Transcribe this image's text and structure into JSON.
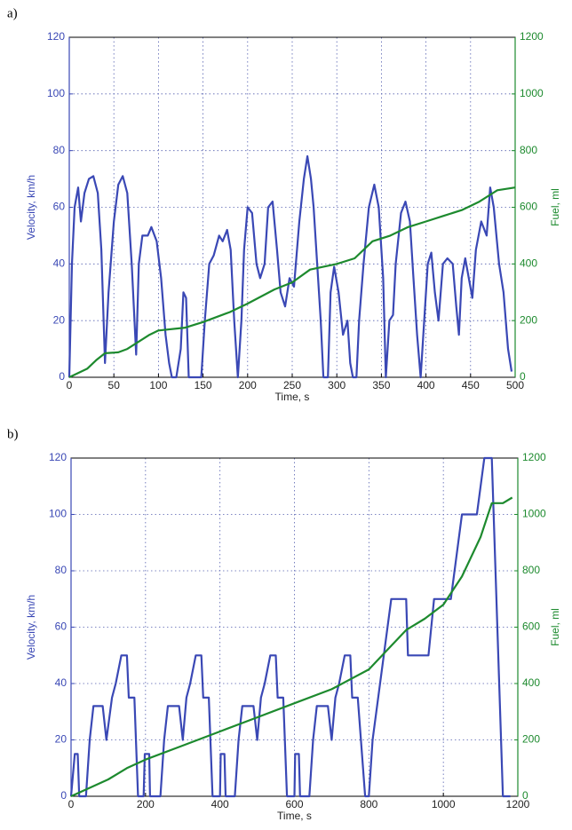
{
  "chart_data": [
    {
      "type": "line",
      "panel_label": "a)",
      "xlabel": "Time, s",
      "ylabel": "Velocity, km/h",
      "y2label": "Fuel, ml",
      "xlim": [
        0,
        500
      ],
      "xticks": [
        0,
        50,
        100,
        150,
        200,
        250,
        300,
        350,
        400,
        450,
        500
      ],
      "ylim": [
        0,
        120
      ],
      "yticks": [
        0,
        20,
        40,
        60,
        80,
        100,
        120
      ],
      "y2lim": [
        0,
        1200
      ],
      "y2ticks": [
        0,
        200,
        400,
        600,
        800,
        1000,
        1200
      ],
      "grid": true,
      "series": [
        {
          "color": "#3a48b5",
          "x": [
            0,
            3,
            6,
            10,
            13,
            17,
            22,
            27,
            32,
            36,
            40,
            44,
            50,
            55,
            60,
            65,
            70,
            75,
            78,
            82,
            88,
            92,
            98,
            103,
            108,
            112,
            115,
            120,
            125,
            128,
            131,
            134,
            148,
            152,
            157,
            162,
            168,
            172,
            177,
            181,
            185,
            189,
            193,
            196,
            200,
            205,
            210,
            214,
            219,
            223,
            228,
            233,
            237,
            242,
            247,
            252,
            258,
            263,
            267,
            271,
            274,
            278,
            282,
            285,
            290,
            293,
            297,
            302,
            307,
            312,
            315,
            318,
            322,
            325,
            330,
            336,
            342,
            347,
            352,
            355,
            359,
            363,
            366,
            372,
            377,
            382,
            386,
            390,
            394,
            398,
            402,
            406,
            410,
            414,
            419,
            424,
            430,
            434,
            437,
            440,
            444,
            448,
            452,
            456,
            462,
            468,
            472,
            476,
            482,
            487,
            492,
            496
          ],
          "values": [
            0,
            40,
            60,
            67,
            55,
            65,
            70,
            71,
            65,
            45,
            5,
            30,
            55,
            68,
            71,
            65,
            40,
            8,
            40,
            50,
            50,
            53,
            48,
            35,
            15,
            5,
            0,
            0,
            10,
            30,
            28,
            0,
            0,
            20,
            40,
            43,
            50,
            48,
            52,
            45,
            20,
            0,
            20,
            45,
            60,
            58,
            40,
            35,
            40,
            60,
            62,
            45,
            30,
            25,
            35,
            32,
            55,
            70,
            78,
            70,
            60,
            40,
            20,
            0,
            0,
            30,
            39,
            30,
            15,
            20,
            5,
            0,
            0,
            20,
            40,
            60,
            68,
            60,
            35,
            0,
            20,
            22,
            40,
            58,
            62,
            55,
            35,
            15,
            0,
            20,
            40,
            44,
            30,
            20,
            40,
            42,
            40,
            25,
            15,
            35,
            42,
            35,
            28,
            45,
            55,
            50,
            67,
            60,
            40,
            30,
            10,
            2
          ]
        },
        {
          "color": "#1d8a2e",
          "axis": "y2",
          "x": [
            0,
            20,
            30,
            40,
            55,
            65,
            75,
            90,
            100,
            130,
            150,
            180,
            200,
            230,
            250,
            270,
            300,
            320,
            340,
            360,
            380,
            400,
            420,
            440,
            460,
            475,
            480,
            500
          ],
          "values": [
            0,
            30,
            60,
            85,
            88,
            100,
            120,
            150,
            165,
            175,
            195,
            230,
            260,
            310,
            335,
            380,
            400,
            420,
            480,
            500,
            530,
            550,
            570,
            590,
            620,
            650,
            660,
            670
          ]
        }
      ]
    },
    {
      "type": "line",
      "panel_label": "b)",
      "xlabel": "Time, s",
      "ylabel": "Velocity, km/h",
      "y2label": "Fuel, ml",
      "xlim": [
        0,
        1200
      ],
      "xticks": [
        0,
        200,
        400,
        600,
        800,
        1000,
        1200
      ],
      "ylim": [
        0,
        120
      ],
      "yticks": [
        0,
        20,
        40,
        60,
        80,
        100,
        120
      ],
      "y2lim": [
        0,
        1200
      ],
      "y2ticks": [
        0,
        200,
        400,
        600,
        800,
        1000,
        1200
      ],
      "grid": true,
      "series": [
        {
          "color": "#3a48b5",
          "x": [
            0,
            10,
            18,
            22,
            40,
            50,
            60,
            85,
            95,
            110,
            120,
            135,
            150,
            155,
            170,
            180,
            195,
            198,
            210,
            212,
            240,
            250,
            260,
            290,
            300,
            310,
            320,
            335,
            350,
            355,
            370,
            380,
            400,
            402,
            412,
            415,
            440,
            450,
            460,
            490,
            500,
            510,
            520,
            535,
            550,
            555,
            570,
            580,
            600,
            602,
            612,
            615,
            640,
            650,
            660,
            690,
            700,
            710,
            720,
            735,
            750,
            755,
            770,
            790,
            800,
            810,
            830,
            850,
            860,
            900,
            905,
            960,
            975,
            1020,
            1050,
            1090,
            1110,
            1130,
            1160,
            1180
          ],
          "values": [
            0,
            15,
            15,
            0,
            0,
            20,
            32,
            32,
            20,
            35,
            40,
            50,
            50,
            35,
            35,
            0,
            0,
            15,
            15,
            0,
            0,
            20,
            32,
            32,
            20,
            35,
            40,
            50,
            50,
            35,
            35,
            0,
            0,
            15,
            15,
            0,
            0,
            20,
            32,
            32,
            20,
            35,
            40,
            50,
            50,
            35,
            35,
            0,
            0,
            15,
            15,
            0,
            0,
            20,
            32,
            32,
            20,
            35,
            40,
            50,
            50,
            35,
            35,
            0,
            0,
            20,
            40,
            60,
            70,
            70,
            50,
            50,
            70,
            70,
            100,
            100,
            120,
            120,
            0,
            0
          ]
        },
        {
          "color": "#1d8a2e",
          "axis": "y2",
          "x": [
            0,
            50,
            100,
            150,
            200,
            300,
            400,
            500,
            600,
            700,
            800,
            850,
            900,
            950,
            1000,
            1050,
            1100,
            1130,
            1160,
            1185
          ],
          "values": [
            0,
            30,
            60,
            100,
            130,
            180,
            230,
            280,
            330,
            380,
            450,
            520,
            590,
            630,
            680,
            780,
            920,
            1040,
            1040,
            1060
          ]
        }
      ]
    }
  ]
}
